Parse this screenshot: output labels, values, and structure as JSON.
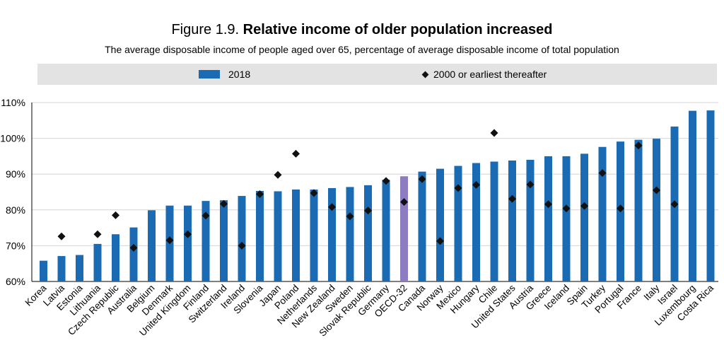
{
  "figure": {
    "label": "Figure 1.9.",
    "title": "Relative income of older population increased",
    "subtitle": "The average disposable income of people aged over 65, percentage of average disposable income of total population"
  },
  "legend": {
    "bar_label": "2018",
    "marker_label": "2000 or earliest thereafter"
  },
  "colors": {
    "bar": "#1b6bb4",
    "highlight_bar": "#8e7cc3",
    "marker": "#111111",
    "grid": "#d4d4d4",
    "legend_band": "#e3e3e3"
  },
  "chart_data": {
    "type": "bar",
    "ylim": [
      60,
      110
    ],
    "yticks": [
      "60%",
      "70%",
      "80%",
      "90%",
      "100%",
      "110%"
    ],
    "grid": true,
    "legend_position": "top",
    "highlight_category": "OECD-32",
    "categories": [
      "Korea",
      "Latvia",
      "Estonia",
      "Lithuania",
      "Czech Republic",
      "Australia",
      "Belgium",
      "Denmark",
      "United Kingdom",
      "Finland",
      "Switzerland",
      "Ireland",
      "Slovenia",
      "Japan",
      "Poland",
      "Netherlands",
      "New Zealand",
      "Sweden",
      "Slovak Republic",
      "Germany",
      "OECD-32",
      "Canada",
      "Norway",
      "Mexico",
      "Hungary",
      "Chile",
      "United States",
      "Austria",
      "Greece",
      "Iceland",
      "Spain",
      "Turkey",
      "Portugal",
      "France",
      "Italy",
      "Israel",
      "Luxembourg",
      "Costa Rica"
    ],
    "series": [
      {
        "name": "2018",
        "values": [
          65.8,
          67.1,
          67.4,
          70.5,
          73.2,
          75.1,
          79.9,
          81.2,
          81.2,
          82.5,
          82.7,
          83.9,
          85.3,
          85.2,
          85.7,
          85.7,
          86.1,
          86.4,
          86.9,
          88.4,
          89.4,
          90.7,
          91.5,
          92.3,
          93.1,
          93.5,
          93.8,
          94.0,
          95.0,
          95.0,
          95.7,
          97.6,
          99.1,
          99.6,
          99.9,
          103.3,
          107.7,
          107.8
        ]
      },
      {
        "name": "2000 or earliest thereafter",
        "values": [
          null,
          72.6,
          null,
          73.2,
          78.5,
          69.4,
          null,
          71.5,
          73.2,
          78.4,
          81.7,
          70.0,
          84.4,
          89.8,
          95.7,
          84.7,
          80.8,
          78.2,
          79.8,
          88.1,
          82.2,
          88.6,
          71.3,
          86.1,
          87.0,
          101.5,
          83.1,
          87.1,
          81.6,
          80.4,
          81.1,
          90.3,
          80.4,
          98.0,
          85.5,
          81.6,
          null,
          null
        ]
      }
    ]
  }
}
